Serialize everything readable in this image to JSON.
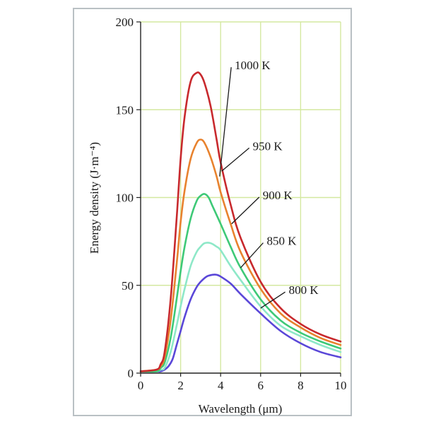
{
  "chart_data": {
    "type": "line",
    "xlabel": "Wavelength (μm)",
    "ylabel": "Energy density (J·m⁻⁴)",
    "xlim": [
      0,
      10
    ],
    "ylim": [
      0,
      200
    ],
    "x_ticks": [
      0,
      2,
      4,
      6,
      8,
      10
    ],
    "y_ticks": [
      0,
      50,
      100,
      150,
      200
    ],
    "grid": true,
    "grid_color": "#d4e8a0",
    "series": [
      {
        "name": "1000 K",
        "color": "#c8292d",
        "x": [
          0,
          0.8,
          1.0,
          1.2,
          1.5,
          1.8,
          2.0,
          2.2,
          2.5,
          2.8,
          3.0,
          3.2,
          3.5,
          3.8,
          4.0,
          4.5,
          5.0,
          6.0,
          7.0,
          8.0,
          9.0,
          10.0
        ],
        "y": [
          1,
          2,
          5,
          12,
          42,
          88,
          122,
          146,
          166,
          171,
          170,
          165,
          152,
          133,
          120,
          96,
          77,
          52,
          37,
          28,
          22,
          18
        ]
      },
      {
        "name": "950 K",
        "color": "#e8822e",
        "x": [
          0,
          0.8,
          1.0,
          1.2,
          1.5,
          1.8,
          2.0,
          2.2,
          2.5,
          2.8,
          3.0,
          3.2,
          3.5,
          3.8,
          4.0,
          4.5,
          5.0,
          6.0,
          7.0,
          8.0,
          9.0,
          10.0
        ],
        "y": [
          1,
          2,
          4,
          9,
          30,
          62,
          86,
          104,
          122,
          131,
          133,
          131,
          123,
          112,
          103,
          85,
          69,
          48,
          34,
          26,
          20,
          16
        ]
      },
      {
        "name": "900 K",
        "color": "#3ec977",
        "x": [
          0,
          0.8,
          1.0,
          1.2,
          1.5,
          1.8,
          2.0,
          2.2,
          2.5,
          2.8,
          3.0,
          3.2,
          3.4,
          3.6,
          4.0,
          4.5,
          5.0,
          6.0,
          7.0,
          8.0,
          9.0,
          10.0
        ],
        "y": [
          1,
          1,
          3,
          6,
          20,
          42,
          58,
          72,
          88,
          98,
          101,
          102,
          100,
          95,
          85,
          72,
          60,
          42,
          30,
          23,
          18,
          14
        ]
      },
      {
        "name": "850 K",
        "color": "#8ee8c8",
        "x": [
          0,
          0.8,
          1.0,
          1.2,
          1.5,
          1.8,
          2.0,
          2.2,
          2.5,
          2.8,
          3.0,
          3.2,
          3.5,
          3.8,
          4.0,
          4.5,
          5.0,
          6.0,
          7.0,
          8.0,
          9.0,
          10.0
        ],
        "y": [
          1,
          1,
          2,
          3,
          12,
          27,
          38,
          48,
          61,
          69,
          72,
          74,
          74,
          72,
          70,
          61,
          53,
          38,
          27,
          21,
          16,
          12
        ]
      },
      {
        "name": "800 K",
        "color": "#5a47d8",
        "x": [
          0,
          0.8,
          1.0,
          1.2,
          1.4,
          1.6,
          1.8,
          2.0,
          2.2,
          2.5,
          2.8,
          3.0,
          3.3,
          3.6,
          3.8,
          4.0,
          4.5,
          5.0,
          6.0,
          7.0,
          8.0,
          9.0,
          10.0
        ],
        "y": [
          1,
          1,
          1,
          2,
          4,
          8,
          16,
          24,
          32,
          42,
          49,
          52,
          55,
          56,
          56,
          55,
          51,
          45,
          34,
          24,
          17,
          12,
          9
        ]
      }
    ],
    "labels": [
      {
        "text": "1000 K",
        "series": "1000 K",
        "anchor_x": 3.95,
        "anchor_y": 112,
        "label_at_x": 4.6,
        "label_at_y": 175
      },
      {
        "text": "950 K",
        "series": "950 K",
        "anchor_x": 4.05,
        "anchor_y": 115,
        "label_at_x": 5.5,
        "label_at_y": 129
      },
      {
        "text": "900 K",
        "series": "900 K",
        "anchor_x": 4.55,
        "anchor_y": 85,
        "label_at_x": 6.0,
        "label_at_y": 101
      },
      {
        "text": "850 K",
        "series": "850 K",
        "anchor_x": 5.0,
        "anchor_y": 60,
        "label_at_x": 6.2,
        "label_at_y": 75
      },
      {
        "text": "800 K",
        "series": "800 K",
        "anchor_x": 6.0,
        "anchor_y": 37,
        "label_at_x": 7.3,
        "label_at_y": 47
      }
    ]
  }
}
